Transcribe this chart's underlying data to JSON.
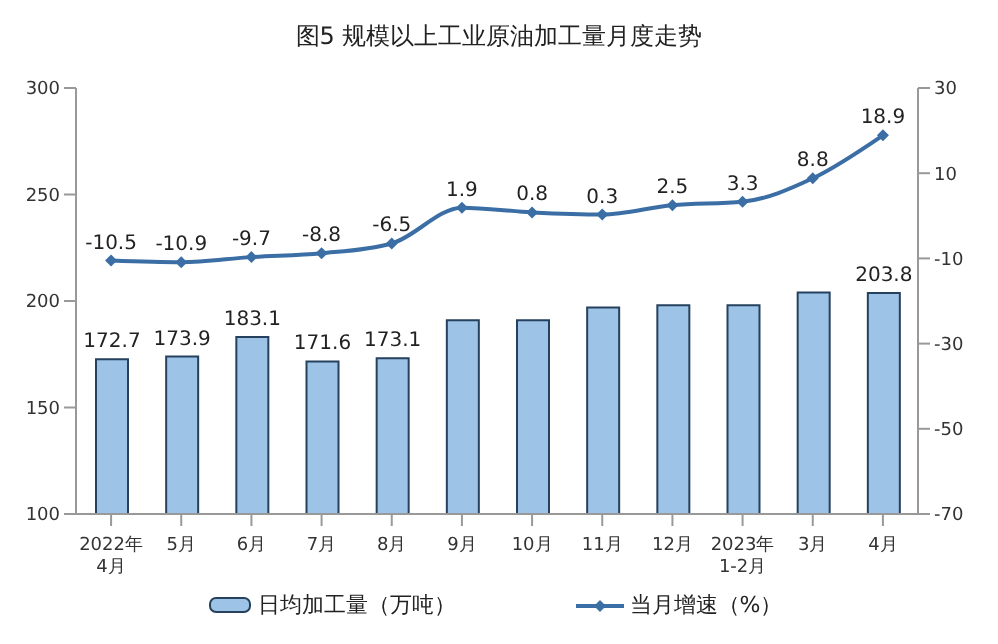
{
  "chart_data": {
    "type": "bar",
    "title": "图5  规模以上工业原油加工量月度走势",
    "categories": [
      "2022年\n4月",
      "5月",
      "6月",
      "7月",
      "8月",
      "9月",
      "10月",
      "11月",
      "12月",
      "2023年\n1-2月",
      "3月",
      "4月"
    ],
    "series": [
      {
        "name": "日均加工量（万吨）",
        "color": "#9dc3e6",
        "values": [
          172.7,
          173.9,
          183.1,
          171.6,
          173.1,
          191,
          191,
          197,
          198,
          198,
          204,
          203.8
        ],
        "value_labels": [
          "172.7",
          "173.9",
          "183.1",
          "171.6",
          "173.1",
          null,
          null,
          null,
          null,
          null,
          null,
          "203.8"
        ]
      },
      {
        "name": "当月增速（%）",
        "type": "line",
        "axis": "y2",
        "color": "#3a6ea5",
        "marker": "diamond",
        "values": [
          -10.5,
          -10.9,
          -9.7,
          -8.8,
          -6.5,
          1.9,
          0.8,
          0.3,
          2.5,
          3.3,
          8.8,
          18.9
        ],
        "value_labels": [
          "-10.5",
          "-10.9",
          "-9.7",
          "-8.8",
          "-6.5",
          "1.9",
          "0.8",
          "0.3",
          "2.5",
          "3.3",
          "8.8",
          "18.9"
        ]
      }
    ],
    "ylim": [
      100,
      300
    ],
    "yticks": [
      100,
      150,
      200,
      250,
      300
    ],
    "y2lim": [
      -70,
      30
    ],
    "y2ticks": [
      -70,
      -50,
      -30,
      -10,
      10,
      30
    ],
    "grid": false,
    "legend": "bottom"
  }
}
